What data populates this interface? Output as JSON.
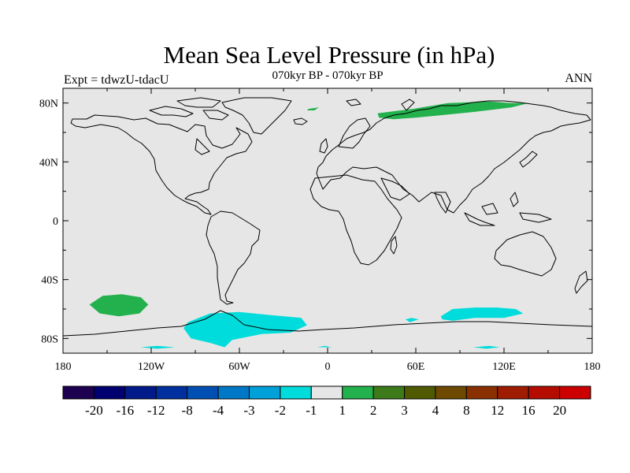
{
  "title": "Mean Sea Level Pressure (in hPa)",
  "subtitle": "070kyr BP - 070kyr BP",
  "left_label": "Expt = tdwzU-tdacU",
  "right_label": "ANN",
  "map": {
    "projection": "cylindrical equidistant",
    "lon_range": [
      -180,
      180
    ],
    "lat_range": [
      -90,
      90
    ],
    "background_color": "#e6e6e6",
    "coastline_color": "#000000",
    "lat_ticks": [
      {
        "lat": 80,
        "label": "80N"
      },
      {
        "lat": 40,
        "label": "40N"
      },
      {
        "lat": 0,
        "label": "0"
      },
      {
        "lat": -40,
        "label": "40S"
      },
      {
        "lat": -80,
        "label": "80S"
      }
    ],
    "lon_ticks": [
      {
        "lon": -180,
        "label": "180"
      },
      {
        "lon": -120,
        "label": "120W"
      },
      {
        "lon": -60,
        "label": "60W"
      },
      {
        "lon": 0,
        "label": "0"
      },
      {
        "lon": 60,
        "label": "60E"
      },
      {
        "lon": 120,
        "label": "120E"
      },
      {
        "lon": 180,
        "label": "180"
      }
    ],
    "anomaly_regions": [
      {
        "name": "arctic-siberia-high",
        "category": "1 to 2",
        "color": "#22b14c",
        "outline": [
          [
            34,
            73
          ],
          [
            58,
            76
          ],
          [
            82,
            80
          ],
          [
            110,
            81
          ],
          [
            125,
            80
          ],
          [
            137,
            80
          ],
          [
            125,
            77
          ],
          [
            100,
            74
          ],
          [
            80,
            72
          ],
          [
            60,
            70
          ],
          [
            45,
            69
          ],
          [
            35,
            70
          ]
        ]
      },
      {
        "name": "greenland-sea-high",
        "category": "1 to 2",
        "color": "#22b14c",
        "outline": [
          [
            -13,
            76
          ],
          [
            -6,
            77
          ],
          [
            -9,
            75
          ],
          [
            -14,
            75
          ]
        ]
      },
      {
        "name": "south-pacific-high",
        "category": "1 to 2",
        "color": "#22b14c",
        "outline": [
          [
            -162,
            -57
          ],
          [
            -153,
            -51
          ],
          [
            -140,
            -50
          ],
          [
            -127,
            -52
          ],
          [
            -122,
            -57
          ],
          [
            -128,
            -63
          ],
          [
            -142,
            -65
          ],
          [
            -155,
            -63
          ]
        ]
      },
      {
        "name": "amundsen-weddell-low",
        "category": "-2 to -1",
        "color": "#00dcdc",
        "outline": [
          [
            -95,
            -69
          ],
          [
            -80,
            -63
          ],
          [
            -60,
            -62
          ],
          [
            -40,
            -64
          ],
          [
            -18,
            -66
          ],
          [
            -14,
            -71
          ],
          [
            -25,
            -76
          ],
          [
            -45,
            -77
          ],
          [
            -65,
            -81
          ],
          [
            -70,
            -86
          ],
          [
            -80,
            -83
          ],
          [
            -93,
            -80
          ],
          [
            -98,
            -73
          ]
        ]
      },
      {
        "name": "east-antarctic-low",
        "category": "-2 to -1",
        "color": "#00dcdc",
        "outline": [
          [
            77,
            -65
          ],
          [
            85,
            -60
          ],
          [
            100,
            -59
          ],
          [
            115,
            -59
          ],
          [
            128,
            -60
          ],
          [
            133,
            -63
          ],
          [
            120,
            -66
          ],
          [
            100,
            -66
          ],
          [
            85,
            -68
          ],
          [
            78,
            -67
          ]
        ]
      },
      {
        "name": "indian-ocean-low-small",
        "category": "-2 to -1",
        "color": "#00dcdc",
        "outline": [
          [
            53,
            -67
          ],
          [
            57,
            -66
          ],
          [
            62,
            -67
          ],
          [
            56,
            -69
          ]
        ]
      },
      {
        "name": "interior-low-1",
        "category": "-2 to -1",
        "color": "#00dcdc",
        "outline": [
          [
            -127,
            -86
          ],
          [
            -116,
            -85
          ],
          [
            -104,
            -86
          ],
          [
            -116,
            -87
          ]
        ]
      },
      {
        "name": "interior-low-2",
        "category": "-2 to -1",
        "color": "#00dcdc",
        "outline": [
          [
            99,
            -86
          ],
          [
            110,
            -85
          ],
          [
            117,
            -86
          ],
          [
            108,
            -87
          ]
        ]
      },
      {
        "name": "interior-low-3",
        "category": "-2 to -1",
        "color": "#00dcdc",
        "outline": [
          [
            -7,
            -86
          ],
          [
            -2,
            -85
          ],
          [
            3,
            -86
          ]
        ]
      }
    ]
  },
  "colorbar": {
    "colors": [
      "#1e0050",
      "#000070",
      "#001a8a",
      "#0030a0",
      "#0050b4",
      "#0078c8",
      "#00a0d8",
      "#00dcdc",
      "#e6e6e6",
      "#22b14c",
      "#3c7a1a",
      "#505a00",
      "#6e4a00",
      "#8a3000",
      "#a01c00",
      "#b40c00",
      "#cc0000"
    ],
    "labels": [
      "-20",
      "-16",
      "-12",
      "-8",
      "-4",
      "-3",
      "-2",
      "-1",
      "1",
      "2",
      "3",
      "4",
      "8",
      "12",
      "16",
      "20"
    ]
  }
}
